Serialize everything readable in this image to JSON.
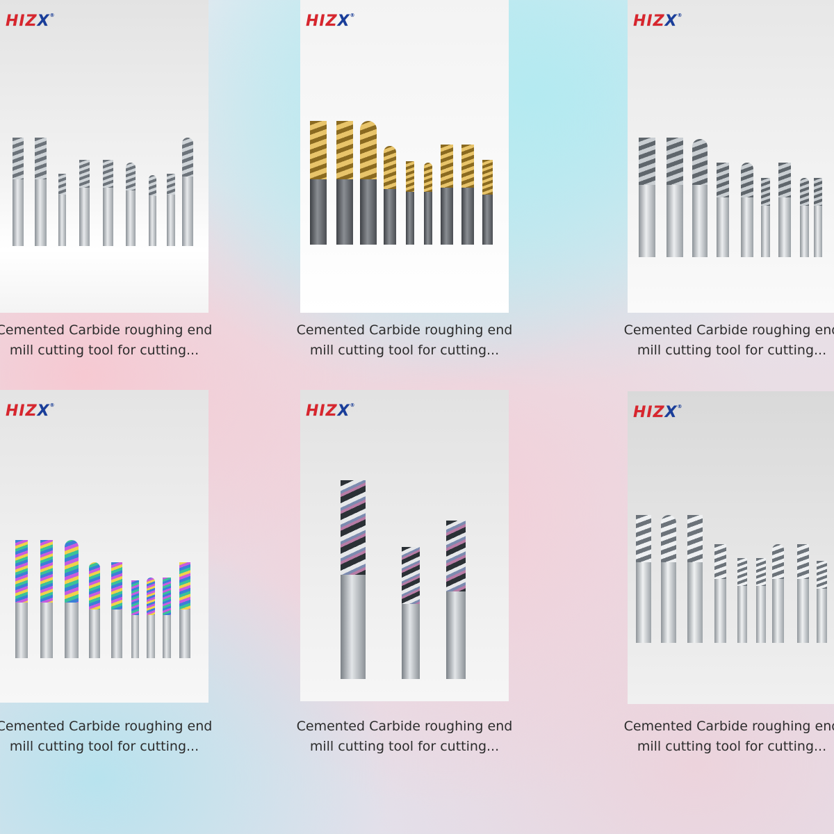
{
  "brand": {
    "logo_text": "HIZX",
    "logo_mark": "®",
    "colors": {
      "red": "#d7262e",
      "blue": "#1a3e9a"
    }
  },
  "products": [
    {
      "caption": "Cemented Carbide roughing end mill cutting tool for cutting...",
      "coating": "silver",
      "icon": "end-mill-set-image"
    },
    {
      "caption": "Cemented Carbide roughing end mill cutting tool for cutting...",
      "coating": "gold",
      "icon": "end-mill-set-image"
    },
    {
      "caption": "Cemented Carbide roughing end mill cutting tool for cutting...",
      "coating": "silver",
      "icon": "end-mill-set-image"
    },
    {
      "caption": "Cemented Carbide roughing end mill cutting tool for cutting...",
      "coating": "rainbow",
      "icon": "end-mill-set-image"
    },
    {
      "caption": "Cemented Carbide roughing end mill cutting tool for cutting...",
      "coating": "rainbow-dark",
      "icon": "end-mill-set-image"
    },
    {
      "caption": "Cemented Carbide roughing end mill cutting tool for cutting...",
      "coating": "silver",
      "icon": "end-mill-set-image"
    }
  ]
}
